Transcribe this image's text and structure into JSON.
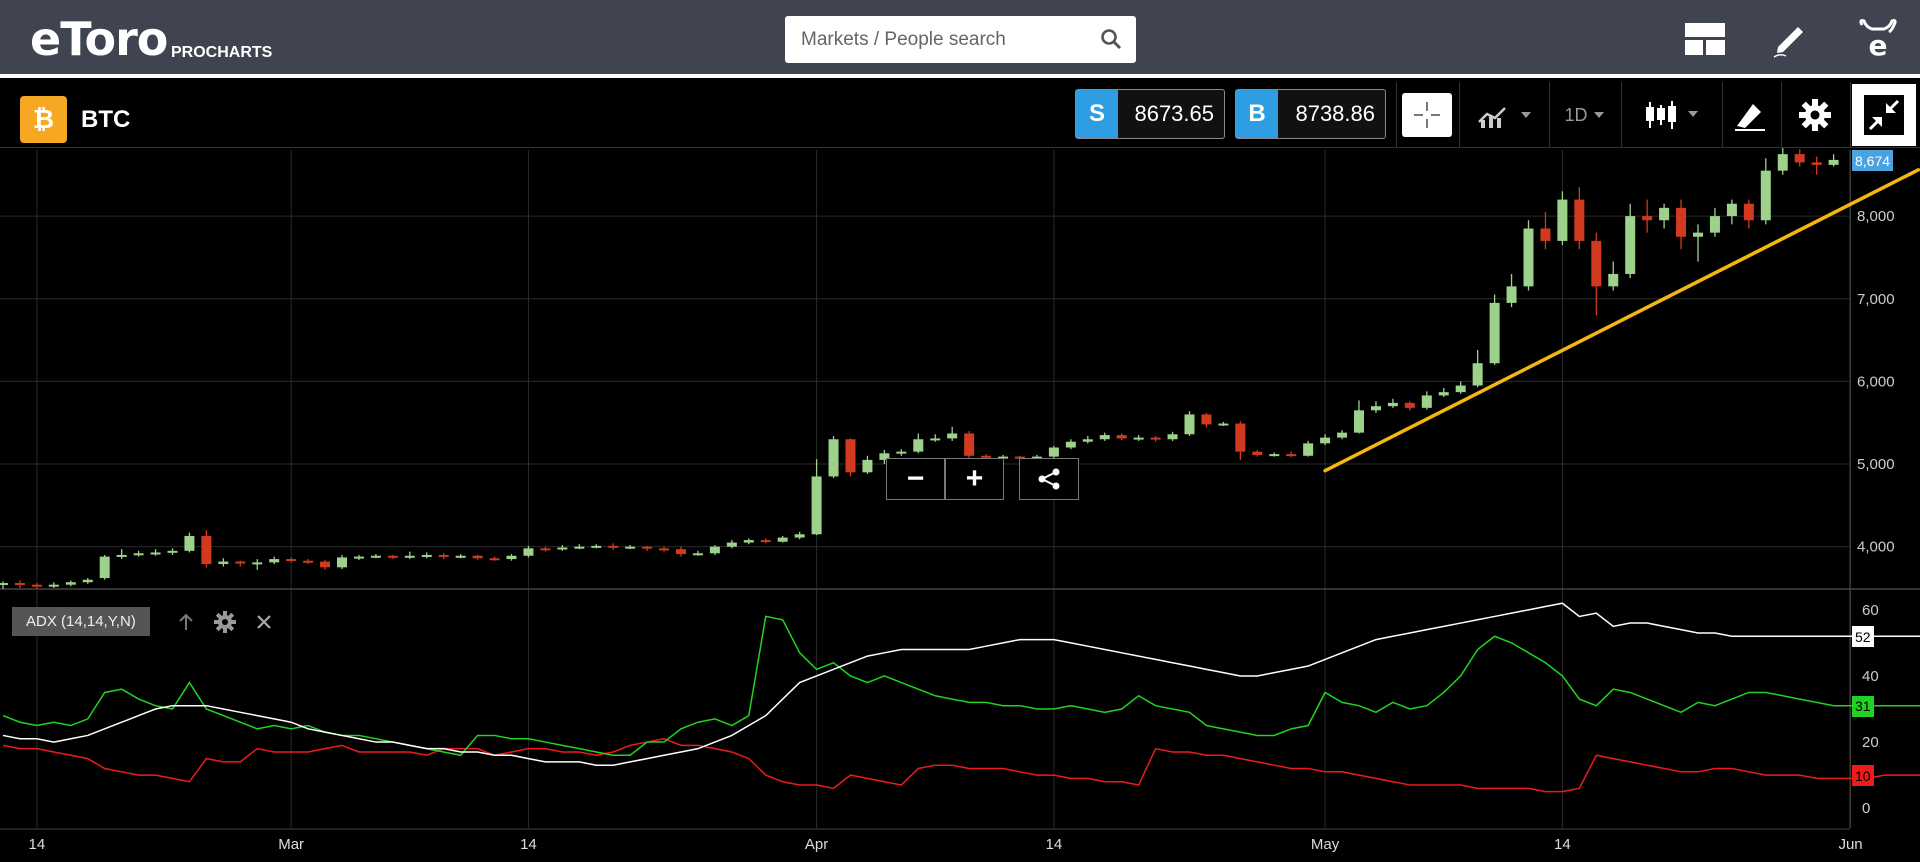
{
  "header": {
    "logo_text": "eToro",
    "logo_sub": "PROCHARTS",
    "search_placeholder": "Markets / People search",
    "icons": [
      "layout-icon",
      "pencil-icon",
      "etoro-user-icon"
    ]
  },
  "instrument": {
    "symbol": "BTC",
    "coin_icon": "bitcoin-icon",
    "sell_label": "S",
    "sell_price": "8673.65",
    "buy_label": "B",
    "buy_price": "8738.86"
  },
  "toolbar": {
    "timeframe": "1D",
    "icons": [
      "crosshair-icon",
      "chart-type-icon",
      "candlestick-icon",
      "drawing-icon",
      "settings-icon",
      "collapse-icon"
    ]
  },
  "overlay_buttons": {
    "zoom_out": "−",
    "zoom_in": "+"
  },
  "indicator": {
    "label": "ADX (14,14,Y,N)"
  },
  "colors": {
    "up": "#9dd18c",
    "down": "#d23a1f",
    "trend": "#f5b60e",
    "adx": "#ffffff",
    "di_plus": "#21d321",
    "di_minus": "#ee1b1b",
    "price_badge": "#4aa3df"
  },
  "chart_data": {
    "type": "candlestick",
    "price_axis": {
      "min": 3500,
      "max": 8800,
      "ticks": [
        "4,000",
        "5,000",
        "6,000",
        "7,000",
        "8,000"
      ],
      "tick_values": [
        4000,
        5000,
        6000,
        7000,
        8000
      ]
    },
    "current_price_label": "8,674",
    "current_price": 8674,
    "x_axis": {
      "labels": [
        "14",
        "Mar",
        "14",
        "Apr",
        "14",
        "May",
        "14",
        "Jun"
      ],
      "label_days": [
        2,
        17,
        31,
        48,
        62,
        78,
        92,
        109
      ],
      "days": 112
    },
    "candles": [
      [
        3550,
        3560,
        3490,
        3580
      ],
      [
        3560,
        3540,
        3500,
        3590
      ],
      [
        3540,
        3520,
        3490,
        3560
      ],
      [
        3520,
        3540,
        3500,
        3570
      ],
      [
        3540,
        3570,
        3520,
        3590
      ],
      [
        3570,
        3600,
        3550,
        3620
      ],
      [
        3620,
        3880,
        3600,
        3900
      ],
      [
        3880,
        3900,
        3850,
        3970
      ],
      [
        3900,
        3920,
        3880,
        3950
      ],
      [
        3920,
        3930,
        3890,
        3970
      ],
      [
        3930,
        3950,
        3900,
        3980
      ],
      [
        3950,
        4130,
        3930,
        4170
      ],
      [
        4130,
        3790,
        3750,
        4200
      ],
      [
        3790,
        3820,
        3760,
        3860
      ],
      [
        3820,
        3800,
        3760,
        3830
      ],
      [
        3800,
        3810,
        3720,
        3850
      ],
      [
        3810,
        3850,
        3790,
        3880
      ],
      [
        3850,
        3830,
        3810,
        3870
      ],
      [
        3830,
        3820,
        3790,
        3850
      ],
      [
        3820,
        3750,
        3720,
        3840
      ],
      [
        3750,
        3870,
        3730,
        3900
      ],
      [
        3870,
        3880,
        3840,
        3900
      ],
      [
        3880,
        3890,
        3860,
        3910
      ],
      [
        3890,
        3870,
        3850,
        3900
      ],
      [
        3870,
        3890,
        3850,
        3940
      ],
      [
        3890,
        3900,
        3860,
        3930
      ],
      [
        3900,
        3880,
        3850,
        3920
      ],
      [
        3880,
        3890,
        3860,
        3910
      ],
      [
        3890,
        3860,
        3840,
        3900
      ],
      [
        3860,
        3850,
        3830,
        3880
      ],
      [
        3850,
        3890,
        3830,
        3910
      ],
      [
        3890,
        3980,
        3870,
        4010
      ],
      [
        3980,
        3970,
        3940,
        4000
      ],
      [
        3970,
        3990,
        3950,
        4020
      ],
      [
        3990,
        4000,
        3970,
        4030
      ],
      [
        4000,
        4010,
        3980,
        4030
      ],
      [
        4010,
        3990,
        3960,
        4040
      ],
      [
        3990,
        4000,
        3970,
        4020
      ],
      [
        4000,
        3980,
        3950,
        4010
      ],
      [
        3980,
        3970,
        3940,
        4000
      ],
      [
        3970,
        3910,
        3880,
        4000
      ],
      [
        3910,
        3920,
        3890,
        3950
      ],
      [
        3920,
        4000,
        3900,
        4020
      ],
      [
        4000,
        4050,
        3980,
        4080
      ],
      [
        4050,
        4080,
        4030,
        4100
      ],
      [
        4080,
        4060,
        4040,
        4100
      ],
      [
        4060,
        4110,
        4050,
        4130
      ],
      [
        4110,
        4150,
        4090,
        4180
      ],
      [
        4150,
        4850,
        4140,
        5060
      ],
      [
        4850,
        5300,
        4830,
        5340
      ],
      [
        5300,
        4900,
        4850,
        5310
      ],
      [
        4900,
        5050,
        4880,
        5100
      ],
      [
        5050,
        5130,
        5000,
        5170
      ],
      [
        5130,
        5150,
        5100,
        5180
      ],
      [
        5150,
        5300,
        5130,
        5370
      ],
      [
        5300,
        5310,
        5270,
        5360
      ],
      [
        5310,
        5370,
        5280,
        5450
      ],
      [
        5370,
        5100,
        5050,
        5400
      ],
      [
        5100,
        5080,
        5040,
        5120
      ],
      [
        5080,
        5090,
        5060,
        5110
      ],
      [
        5090,
        5080,
        5050,
        5100
      ],
      [
        5080,
        5090,
        5060,
        5110
      ],
      [
        5090,
        5200,
        5070,
        5220
      ],
      [
        5200,
        5270,
        5180,
        5300
      ],
      [
        5270,
        5300,
        5250,
        5340
      ],
      [
        5300,
        5350,
        5280,
        5380
      ],
      [
        5350,
        5310,
        5290,
        5370
      ],
      [
        5310,
        5320,
        5280,
        5350
      ],
      [
        5320,
        5300,
        5270,
        5340
      ],
      [
        5300,
        5360,
        5280,
        5390
      ],
      [
        5360,
        5600,
        5340,
        5640
      ],
      [
        5600,
        5480,
        5440,
        5620
      ],
      [
        5480,
        5490,
        5460,
        5510
      ],
      [
        5490,
        5150,
        5050,
        5520
      ],
      [
        5150,
        5110,
        5090,
        5170
      ],
      [
        5110,
        5120,
        5090,
        5140
      ],
      [
        5120,
        5100,
        5080,
        5150
      ],
      [
        5100,
        5250,
        5090,
        5280
      ],
      [
        5250,
        5320,
        5230,
        5360
      ],
      [
        5320,
        5380,
        5300,
        5410
      ],
      [
        5380,
        5650,
        5370,
        5770
      ],
      [
        5650,
        5700,
        5620,
        5760
      ],
      [
        5700,
        5740,
        5680,
        5790
      ],
      [
        5740,
        5680,
        5650,
        5760
      ],
      [
        5680,
        5830,
        5660,
        5880
      ],
      [
        5830,
        5870,
        5810,
        5920
      ],
      [
        5870,
        5950,
        5850,
        6000
      ],
      [
        5950,
        6220,
        5930,
        6380
      ],
      [
        6220,
        6950,
        6200,
        7050
      ],
      [
        6950,
        7150,
        6900,
        7300
      ],
      [
        7150,
        7850,
        7100,
        7950
      ],
      [
        7850,
        7700,
        7600,
        8050
      ],
      [
        7700,
        8200,
        7650,
        8300
      ],
      [
        8200,
        7700,
        7600,
        8350
      ],
      [
        7700,
        7150,
        6800,
        7800
      ],
      [
        7150,
        7300,
        7100,
        7450
      ],
      [
        7300,
        8000,
        7250,
        8150
      ],
      [
        8000,
        7950,
        7800,
        8200
      ],
      [
        7950,
        8100,
        7850,
        8150
      ],
      [
        8100,
        7750,
        7600,
        8200
      ],
      [
        7750,
        7800,
        7450,
        7900
      ],
      [
        7800,
        8000,
        7750,
        8100
      ],
      [
        8000,
        8150,
        7900,
        8200
      ],
      [
        8150,
        7950,
        7850,
        8200
      ],
      [
        7950,
        8550,
        7900,
        8700
      ],
      [
        8550,
        8750,
        8500,
        8850
      ],
      [
        8750,
        8650,
        8600,
        8810
      ],
      [
        8650,
        8620,
        8500,
        8720
      ],
      [
        8620,
        8680,
        8600,
        8750
      ]
    ],
    "trendline": {
      "start": {
        "day": 78,
        "price": 4920
      },
      "end": {
        "day": 113,
        "price": 8560
      }
    },
    "adx_panel": {
      "ticks": [
        "0",
        "20",
        "40",
        "60"
      ],
      "tick_values": [
        0,
        20,
        40,
        60
      ],
      "range": [
        -6,
        66
      ],
      "adx": [
        22,
        21,
        21,
        20,
        21,
        22,
        24,
        26,
        28,
        30,
        31,
        31,
        31,
        30,
        29,
        28,
        27,
        26,
        24,
        23,
        22,
        21,
        20,
        20,
        19,
        18,
        18,
        17,
        17,
        16,
        16,
        15,
        14,
        14,
        14,
        13,
        13,
        14,
        15,
        16,
        17,
        18,
        20,
        22,
        25,
        28,
        33,
        38,
        40,
        42,
        44,
        46,
        47,
        48,
        48,
        48,
        48,
        48,
        49,
        50,
        51,
        51,
        51,
        50,
        49,
        48,
        47,
        46,
        45,
        44,
        43,
        42,
        41,
        40,
        40,
        41,
        42,
        43,
        45,
        47,
        49,
        51,
        52,
        53,
        54,
        55,
        56,
        57,
        58,
        59,
        60,
        61,
        62,
        58,
        59,
        55,
        56,
        56,
        55,
        54,
        53,
        53,
        52,
        52,
        52,
        52,
        52,
        52,
        52,
        52,
        52,
        52,
        52,
        52,
        52
      ],
      "di_plus": [
        28,
        26,
        25,
        26,
        25,
        27,
        35,
        36,
        33,
        31,
        30,
        38,
        30,
        28,
        26,
        24,
        25,
        24,
        25,
        23,
        22,
        22,
        21,
        20,
        19,
        18,
        17,
        16,
        22,
        22,
        21,
        21,
        20,
        19,
        18,
        17,
        16,
        16,
        20,
        20,
        24,
        26,
        27,
        25,
        28,
        58,
        57,
        47,
        42,
        44,
        40,
        38,
        40,
        38,
        36,
        34,
        33,
        32,
        32,
        31,
        31,
        30,
        30,
        31,
        30,
        29,
        30,
        34,
        31,
        30,
        29,
        25,
        24,
        23,
        22,
        22,
        24,
        25,
        35,
        32,
        31,
        29,
        32,
        30,
        31,
        35,
        40,
        48,
        52,
        50,
        47,
        44,
        40,
        33,
        31,
        36,
        35,
        33,
        31,
        29,
        32,
        31,
        33,
        35,
        35,
        34,
        33,
        32,
        31,
        31,
        31,
        31,
        31,
        31,
        31
      ],
      "di_minus": [
        19,
        18,
        18,
        17,
        16,
        15,
        12,
        11,
        10,
        10,
        9,
        8,
        15,
        14,
        14,
        18,
        17,
        17,
        17,
        18,
        19,
        17,
        17,
        17,
        17,
        16,
        18,
        18,
        18,
        16,
        17,
        18,
        18,
        17,
        17,
        16,
        17,
        19,
        20,
        21,
        19,
        19,
        18,
        17,
        15,
        10,
        8,
        7,
        7,
        6,
        10,
        9,
        8,
        7,
        12,
        13,
        13,
        12,
        12,
        12,
        11,
        10,
        10,
        9,
        9,
        8,
        8,
        7,
        18,
        17,
        17,
        16,
        16,
        15,
        14,
        13,
        12,
        12,
        11,
        11,
        10,
        9,
        8,
        7,
        7,
        7,
        7,
        6,
        6,
        6,
        6,
        5,
        5,
        6,
        16,
        15,
        14,
        13,
        12,
        11,
        11,
        12,
        12,
        11,
        10,
        10,
        10,
        9,
        9,
        9,
        9,
        10,
        10,
        10,
        10
      ],
      "badges": {
        "adx": "52",
        "di_plus": "31",
        "di_minus": "10"
      }
    }
  }
}
